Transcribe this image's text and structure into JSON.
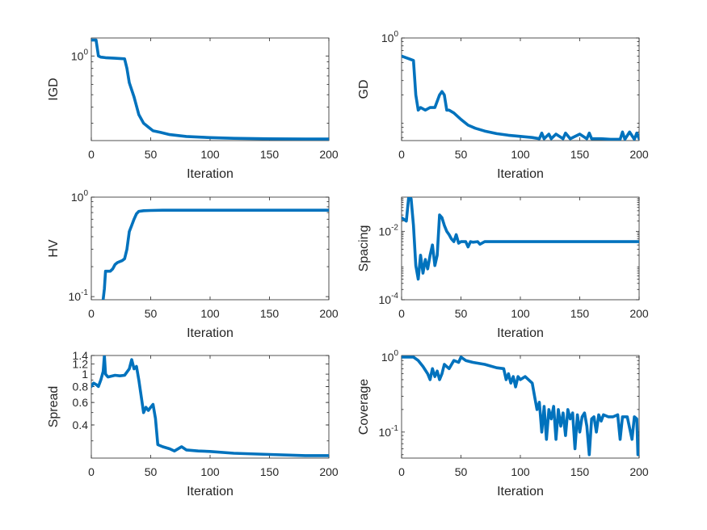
{
  "chart_data": [
    {
      "type": "line",
      "xlabel": "Iteration",
      "ylabel": "IGD",
      "xlim": [
        0,
        200
      ],
      "ylim": [
        0.22,
        1.38
      ],
      "yscale": "log",
      "xticks": [
        0,
        50,
        100,
        150,
        200
      ],
      "yticks": [
        {
          "v": 1,
          "label": "10",
          "sup": "0"
        }
      ],
      "color": "#0072BD",
      "series": [
        {
          "x": [
            0,
            4,
            6,
            8,
            12,
            20,
            28,
            30,
            32,
            36,
            40,
            44,
            48,
            52,
            58,
            66,
            80,
            100,
            120,
            150,
            180,
            200
          ],
          "y": [
            1.33,
            1.33,
            1.0,
            0.98,
            0.97,
            0.96,
            0.95,
            0.8,
            0.62,
            0.48,
            0.35,
            0.3,
            0.28,
            0.262,
            0.255,
            0.245,
            0.237,
            0.232,
            0.229,
            0.227,
            0.226,
            0.226
          ]
        }
      ]
    },
    {
      "type": "line",
      "xlabel": "Iteration",
      "ylabel": "GD",
      "xlim": [
        0,
        200
      ],
      "ylim": [
        0.055,
        1.0
      ],
      "yscale": "log",
      "xticks": [
        0,
        50,
        100,
        150,
        200
      ],
      "yticks": [
        {
          "v": 1,
          "label": "10",
          "sup": "0"
        }
      ],
      "color": "#0072BD",
      "series": [
        {
          "x": [
            0,
            4,
            10,
            12,
            14,
            16,
            20,
            24,
            28,
            32,
            34,
            36,
            38,
            40,
            44,
            50,
            56,
            62,
            70,
            80,
            90,
            100,
            110,
            116,
            118,
            120,
            124,
            126,
            130,
            136,
            138,
            142,
            150,
            156,
            158,
            160,
            168,
            176,
            184,
            186,
            188,
            192,
            196,
            198,
            200
          ],
          "y": [
            0.6,
            0.57,
            0.53,
            0.2,
            0.13,
            0.14,
            0.13,
            0.14,
            0.14,
            0.2,
            0.22,
            0.2,
            0.13,
            0.13,
            0.12,
            0.1,
            0.085,
            0.078,
            0.072,
            0.067,
            0.064,
            0.062,
            0.06,
            0.058,
            0.068,
            0.058,
            0.066,
            0.058,
            0.066,
            0.058,
            0.068,
            0.058,
            0.066,
            0.058,
            0.068,
            0.058,
            0.058,
            0.057,
            0.057,
            0.07,
            0.057,
            0.07,
            0.057,
            0.068,
            0.058
          ]
        }
      ]
    },
    {
      "type": "line",
      "xlabel": "Iteration",
      "ylabel": "HV",
      "xlim": [
        0,
        200
      ],
      "ylim": [
        0.093,
        1.0
      ],
      "yscale": "log",
      "xticks": [
        0,
        50,
        100,
        150,
        200
      ],
      "yticks": [
        {
          "v": 1,
          "label": "10",
          "sup": "0"
        },
        {
          "v": 0.1,
          "label": "10",
          "sup": "-1"
        }
      ],
      "color": "#0072BD",
      "series": [
        {
          "x": [
            10,
            11,
            12,
            16,
            18,
            20,
            22,
            26,
            28,
            30,
            32,
            34,
            36,
            38,
            40,
            44,
            50,
            60,
            80,
            100,
            150,
            200
          ],
          "y": [
            0.094,
            0.12,
            0.18,
            0.18,
            0.19,
            0.21,
            0.22,
            0.23,
            0.24,
            0.3,
            0.45,
            0.52,
            0.6,
            0.68,
            0.72,
            0.73,
            0.735,
            0.738,
            0.738,
            0.738,
            0.738,
            0.738
          ]
        }
      ]
    },
    {
      "type": "line",
      "xlabel": "Iteration",
      "ylabel": "Spacing",
      "xlim": [
        0,
        200
      ],
      "ylim": [
        0.0001,
        0.1
      ],
      "yscale": "log",
      "xticks": [
        0,
        50,
        100,
        150,
        200
      ],
      "yticks": [
        {
          "v": 0.01,
          "label": "10",
          "sup": "-2"
        },
        {
          "v": 0.0001,
          "label": "10",
          "sup": "-4"
        }
      ],
      "color": "#0072BD",
      "series": [
        {
          "x": [
            0,
            4,
            6,
            8,
            10,
            12,
            14,
            16,
            18,
            20,
            22,
            24,
            26,
            28,
            30,
            32,
            34,
            36,
            38,
            40,
            42,
            44,
            46,
            48,
            50,
            54,
            56,
            58,
            60,
            64,
            66,
            70,
            80,
            100,
            150,
            200
          ],
          "y": [
            0.025,
            0.02,
            0.1,
            0.09,
            0.015,
            0.001,
            0.0004,
            0.002,
            0.0006,
            0.0015,
            0.0008,
            0.002,
            0.004,
            0.001,
            0.002,
            0.03,
            0.025,
            0.015,
            0.01,
            0.008,
            0.006,
            0.005,
            0.008,
            0.0045,
            0.005,
            0.005,
            0.0035,
            0.005,
            0.0048,
            0.005,
            0.0042,
            0.005,
            0.005,
            0.005,
            0.005,
            0.005
          ]
        }
      ]
    },
    {
      "type": "line",
      "xlabel": "Iteration",
      "ylabel": "Spread",
      "xlim": [
        0,
        200
      ],
      "ylim": [
        0.22,
        1.4
      ],
      "yscale": "log",
      "xticks": [
        0,
        50,
        100,
        150,
        200
      ],
      "yticks": [
        {
          "v": 0.4,
          "label": "0.4",
          "sup": ""
        },
        {
          "v": 0.6,
          "label": "0.6",
          "sup": ""
        },
        {
          "v": 0.8,
          "label": "0.8",
          "sup": ""
        },
        {
          "v": 1.0,
          "label": "1",
          "sup": ""
        },
        {
          "v": 1.2,
          "label": "1.2",
          "sup": ""
        },
        {
          "v": 1.4,
          "label": "1.4",
          "sup": ""
        }
      ],
      "color": "#0072BD",
      "series": [
        {
          "x": [
            0,
            2,
            4,
            6,
            8,
            10,
            11,
            12,
            14,
            20,
            24,
            28,
            32,
            34,
            35,
            36,
            38,
            40,
            44,
            46,
            48,
            50,
            52,
            54,
            56,
            60,
            66,
            70,
            76,
            80,
            90,
            100,
            120,
            150,
            180,
            200
          ],
          "y": [
            0.8,
            0.85,
            0.83,
            0.8,
            0.9,
            1.05,
            1.4,
            1.0,
            0.95,
            0.98,
            0.97,
            0.98,
            1.1,
            1.3,
            1.2,
            1.1,
            1.15,
            0.9,
            0.5,
            0.55,
            0.52,
            0.55,
            0.58,
            0.45,
            0.28,
            0.27,
            0.26,
            0.25,
            0.27,
            0.255,
            0.25,
            0.248,
            0.24,
            0.235,
            0.23,
            0.23
          ]
        }
      ]
    },
    {
      "type": "line",
      "xlabel": "Iteration",
      "ylabel": "Coverage",
      "xlim": [
        0,
        200
      ],
      "ylim": [
        0.045,
        1.05
      ],
      "yscale": "log",
      "xticks": [
        0,
        50,
        100,
        150,
        200
      ],
      "yticks": [
        {
          "v": 1,
          "label": "10",
          "sup": "0"
        },
        {
          "v": 0.1,
          "label": "10",
          "sup": "-1"
        }
      ],
      "color": "#0072BD",
      "series": [
        {
          "x": [
            0,
            10,
            14,
            18,
            22,
            24,
            26,
            28,
            30,
            32,
            34,
            36,
            40,
            44,
            48,
            50,
            54,
            60,
            70,
            80,
            86,
            88,
            90,
            92,
            94,
            96,
            98,
            100,
            104,
            110,
            112,
            114,
            116,
            118,
            120,
            122,
            124,
            126,
            128,
            130,
            132,
            134,
            136,
            138,
            140,
            142,
            144,
            146,
            148,
            150,
            152,
            154,
            156,
            158,
            160,
            162,
            164,
            166,
            168,
            170,
            174,
            178,
            182,
            184,
            186,
            188,
            190,
            194,
            196,
            198,
            199,
            200
          ],
          "y": [
            1.0,
            1.0,
            0.9,
            0.75,
            0.6,
            0.5,
            0.7,
            0.55,
            0.65,
            0.5,
            0.6,
            0.8,
            0.7,
            0.9,
            0.85,
            1.0,
            0.9,
            0.85,
            0.8,
            0.72,
            0.7,
            0.5,
            0.6,
            0.45,
            0.55,
            0.4,
            0.55,
            0.5,
            0.55,
            0.45,
            0.3,
            0.2,
            0.25,
            0.1,
            0.22,
            0.08,
            0.2,
            0.15,
            0.22,
            0.08,
            0.2,
            0.12,
            0.18,
            0.09,
            0.2,
            0.15,
            0.18,
            0.06,
            0.17,
            0.1,
            0.16,
            0.18,
            0.12,
            0.05,
            0.15,
            0.16,
            0.1,
            0.17,
            0.14,
            0.17,
            0.16,
            0.16,
            0.17,
            0.08,
            0.16,
            0.16,
            0.16,
            0.08,
            0.16,
            0.15,
            0.05,
            0.06
          ]
        }
      ]
    }
  ]
}
